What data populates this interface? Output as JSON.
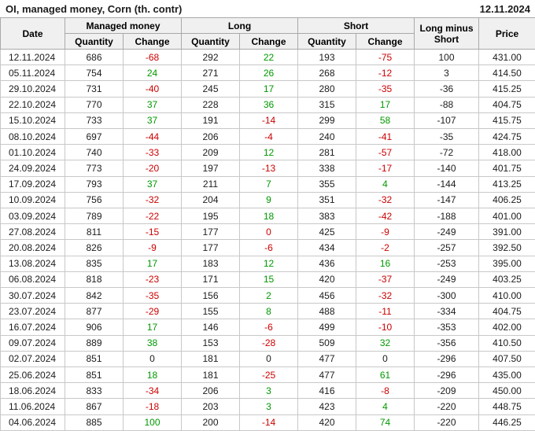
{
  "title": "OI, managed money, Corn (th. contr)",
  "report_date": "12.11.2024",
  "colors": {
    "positive": "#009900",
    "negative": "#cc0000",
    "header_bg": "#f0f0f0",
    "grid": "#c8c8c8",
    "grid_dark": "#a9a9a9",
    "text": "#1c1c1c"
  },
  "table": {
    "headers": {
      "date": "Date",
      "managed_money": "Managed money",
      "long": "Long",
      "short": "Short",
      "long_minus_short": "Long minus Short",
      "price": "Price"
    },
    "sub_headers": {
      "quantity": "Quantity",
      "change": "Change"
    },
    "column_names": [
      "cell-date",
      "cell-mm-quantity",
      "cell-mm-change",
      "cell-long-quantity",
      "cell-long-change",
      "cell-short-quantity",
      "cell-short-change",
      "cell-long-minus-short",
      "cell-price"
    ],
    "rows": [
      [
        "12.11.2024",
        "686",
        [
          "-68",
          "neg"
        ],
        "292",
        [
          "22",
          "pos"
        ],
        "193",
        [
          "-75",
          "neg"
        ],
        "100",
        "431.00"
      ],
      [
        "05.11.2024",
        "754",
        [
          "24",
          "pos"
        ],
        "271",
        [
          "26",
          "pos"
        ],
        "268",
        [
          "-12",
          "neg"
        ],
        "3",
        "414.50"
      ],
      [
        "29.10.2024",
        "731",
        [
          "-40",
          "neg"
        ],
        "245",
        [
          "17",
          "pos"
        ],
        "280",
        [
          "-35",
          "neg"
        ],
        "-36",
        "415.25"
      ],
      [
        "22.10.2024",
        "770",
        [
          "37",
          "pos"
        ],
        "228",
        [
          "36",
          "pos"
        ],
        "315",
        [
          "17",
          "pos"
        ],
        "-88",
        "404.75"
      ],
      [
        "15.10.2024",
        "733",
        [
          "37",
          "pos"
        ],
        "191",
        [
          "-14",
          "neg"
        ],
        "299",
        [
          "58",
          "pos"
        ],
        "-107",
        "415.75"
      ],
      [
        "08.10.2024",
        "697",
        [
          "-44",
          "neg"
        ],
        "206",
        [
          "-4",
          "neg"
        ],
        "240",
        [
          "-41",
          "neg"
        ],
        "-35",
        "424.75"
      ],
      [
        "01.10.2024",
        "740",
        [
          "-33",
          "neg"
        ],
        "209",
        [
          "12",
          "pos"
        ],
        "281",
        [
          "-57",
          "neg"
        ],
        "-72",
        "418.00"
      ],
      [
        "24.09.2024",
        "773",
        [
          "-20",
          "neg"
        ],
        "197",
        [
          "-13",
          "neg"
        ],
        "338",
        [
          "-17",
          "neg"
        ],
        "-140",
        "401.75"
      ],
      [
        "17.09.2024",
        "793",
        [
          "37",
          "pos"
        ],
        "211",
        [
          "7",
          "pos"
        ],
        "355",
        [
          "4",
          "pos"
        ],
        "-144",
        "413.25"
      ],
      [
        "10.09.2024",
        "756",
        [
          "-32",
          "neg"
        ],
        "204",
        [
          "9",
          "pos"
        ],
        "351",
        [
          "-32",
          "neg"
        ],
        "-147",
        "406.25"
      ],
      [
        "03.09.2024",
        "789",
        [
          "-22",
          "neg"
        ],
        "195",
        [
          "18",
          "pos"
        ],
        "383",
        [
          "-42",
          "neg"
        ],
        "-188",
        "401.00"
      ],
      [
        "27.08.2024",
        "811",
        [
          "-15",
          "neg"
        ],
        "177",
        [
          "0",
          "neg"
        ],
        "425",
        [
          "-9",
          "neg"
        ],
        "-249",
        "391.00"
      ],
      [
        "20.08.2024",
        "826",
        [
          "-9",
          "neg"
        ],
        "177",
        [
          "-6",
          "neg"
        ],
        "434",
        [
          "-2",
          "neg"
        ],
        "-257",
        "392.50"
      ],
      [
        "13.08.2024",
        "835",
        [
          "17",
          "pos"
        ],
        "183",
        [
          "12",
          "pos"
        ],
        "436",
        [
          "16",
          "pos"
        ],
        "-253",
        "395.00"
      ],
      [
        "06.08.2024",
        "818",
        [
          "-23",
          "neg"
        ],
        "171",
        [
          "15",
          "pos"
        ],
        "420",
        [
          "-37",
          "neg"
        ],
        "-249",
        "403.25"
      ],
      [
        "30.07.2024",
        "842",
        [
          "-35",
          "neg"
        ],
        "156",
        [
          "2",
          "pos"
        ],
        "456",
        [
          "-32",
          "neg"
        ],
        "-300",
        "410.00"
      ],
      [
        "23.07.2024",
        "877",
        [
          "-29",
          "neg"
        ],
        "155",
        [
          "8",
          "pos"
        ],
        "488",
        [
          "-11",
          "neg"
        ],
        "-334",
        "404.75"
      ],
      [
        "16.07.2024",
        "906",
        [
          "17",
          "pos"
        ],
        "146",
        [
          "-6",
          "neg"
        ],
        "499",
        [
          "-10",
          "neg"
        ],
        "-353",
        "402.00"
      ],
      [
        "09.07.2024",
        "889",
        [
          "38",
          "pos"
        ],
        "153",
        [
          "-28",
          "neg"
        ],
        "509",
        [
          "32",
          "pos"
        ],
        "-356",
        "410.50"
      ],
      [
        "02.07.2024",
        "851",
        "0",
        "181",
        "0",
        "477",
        "0",
        "-296",
        "407.50"
      ],
      [
        "25.06.2024",
        "851",
        [
          "18",
          "pos"
        ],
        "181",
        [
          "-25",
          "neg"
        ],
        "477",
        [
          "61",
          "pos"
        ],
        "-296",
        "435.00"
      ],
      [
        "18.06.2024",
        "833",
        [
          "-34",
          "neg"
        ],
        "206",
        [
          "3",
          "pos"
        ],
        "416",
        [
          "-8",
          "neg"
        ],
        "-209",
        "450.00"
      ],
      [
        "11.06.2024",
        "867",
        [
          "-18",
          "neg"
        ],
        "203",
        [
          "3",
          "pos"
        ],
        "423",
        [
          "4",
          "pos"
        ],
        "-220",
        "448.75"
      ],
      [
        "04.06.2024",
        "885",
        [
          "100",
          "pos"
        ],
        "200",
        [
          "-14",
          "neg"
        ],
        "420",
        [
          "74",
          "pos"
        ],
        "-220",
        "446.25"
      ]
    ]
  }
}
